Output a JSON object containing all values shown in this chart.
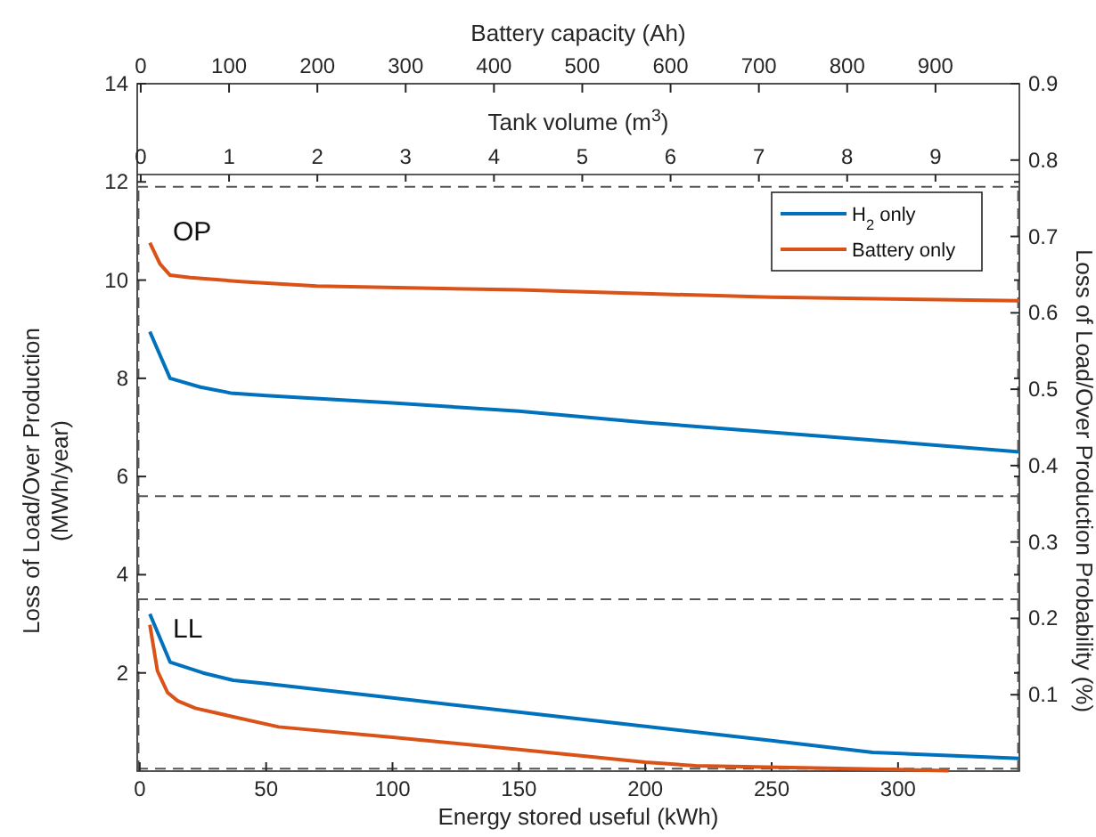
{
  "chart_data": [
    {
      "type": "line",
      "xlabel": "Energy stored useful (kWh)",
      "ylabel": "Loss of Load/Over Production (MWh/year)",
      "y2label": "Loss of Load/Over Production Probability (%)",
      "x2label": "Battery capacity (Ah)",
      "xlim": [
        -1,
        348
      ],
      "xticks": [
        0,
        50,
        100,
        150,
        200,
        250,
        300
      ],
      "ylim": [
        0,
        14
      ],
      "yticks": [
        2,
        4,
        6,
        8,
        10,
        12,
        14
      ],
      "y2lim": [
        0,
        0.9
      ],
      "y2ticks": [
        0.1,
        0.2,
        0.3,
        0.4,
        0.5,
        0.6,
        0.7,
        0.8,
        0.9
      ],
      "x2lim": [
        -4,
        995
      ],
      "x2ticks": [
        0,
        100,
        200,
        300,
        400,
        500,
        600,
        700,
        800,
        900
      ],
      "series": [
        {
          "name": "H$_{2}$ only",
          "color": "#0072bd",
          "x": [
            4,
            12,
            24,
            36,
            50,
            100,
            150,
            200,
            250,
            300,
            348
          ],
          "values": [
            8.95,
            8.0,
            7.82,
            7.7,
            7.65,
            7.5,
            7.33,
            7.1,
            6.9,
            6.7,
            6.5
          ]
        },
        {
          "name": "Battery only",
          "color": "#d95319",
          "x": [
            4,
            8,
            12,
            20,
            40,
            70,
            150,
            250,
            348
          ],
          "values": [
            10.76,
            10.33,
            10.1,
            10.05,
            9.97,
            9.88,
            9.8,
            9.65,
            9.58
          ]
        },
        {
          "color": "#0072bd",
          "x": [
            4,
            12,
            25,
            37,
            50,
            100,
            150,
            200,
            250,
            290,
            348
          ],
          "values": [
            3.2,
            2.22,
            2.0,
            1.85,
            1.78,
            1.49,
            1.2,
            0.91,
            0.62,
            0.38,
            0.26
          ]
        },
        {
          "color": "#d95319",
          "x": [
            4,
            7,
            11,
            15,
            22,
            35,
            55,
            100,
            150,
            200,
            220,
            300,
            320
          ],
          "values": [
            2.98,
            2.04,
            1.6,
            1.43,
            1.28,
            1.13,
            0.9,
            0.69,
            0.44,
            0.18,
            0.11,
            0.03,
            0.01
          ]
        }
      ],
      "ref_lines": [
        {
          "axis": "y",
          "value": 11.9,
          "line_style": "dashed"
        },
        {
          "axis": "y",
          "value": 5.6,
          "line_style": "dashed"
        },
        {
          "axis": "y",
          "value": 3.5,
          "line_style": "dashed"
        },
        {
          "axis": "y",
          "value": 0.05,
          "line_style": "dashed"
        },
        {
          "axis": "x",
          "value": -0.5,
          "line_style": "dashed"
        },
        {
          "axis": "x",
          "value": 347.5,
          "line_style": "dashed"
        }
      ],
      "annotations": [
        "OP",
        "LL"
      ],
      "legend": "top right",
      "grid": false,
      "line_style": "solid",
      "marker": "none"
    },
    {
      "type": "line",
      "xlabel": "Tank volume (m$^{3}$)",
      "xlim": [
        -0.04,
        9.95
      ],
      "xticks": [
        0,
        1,
        2,
        3,
        4,
        5,
        6,
        7,
        8,
        9
      ],
      "ylim": [
        0,
        12.15
      ],
      "yticks": [
        2,
        4,
        6,
        8,
        10,
        12
      ],
      "tick_labels": "x"
    }
  ]
}
